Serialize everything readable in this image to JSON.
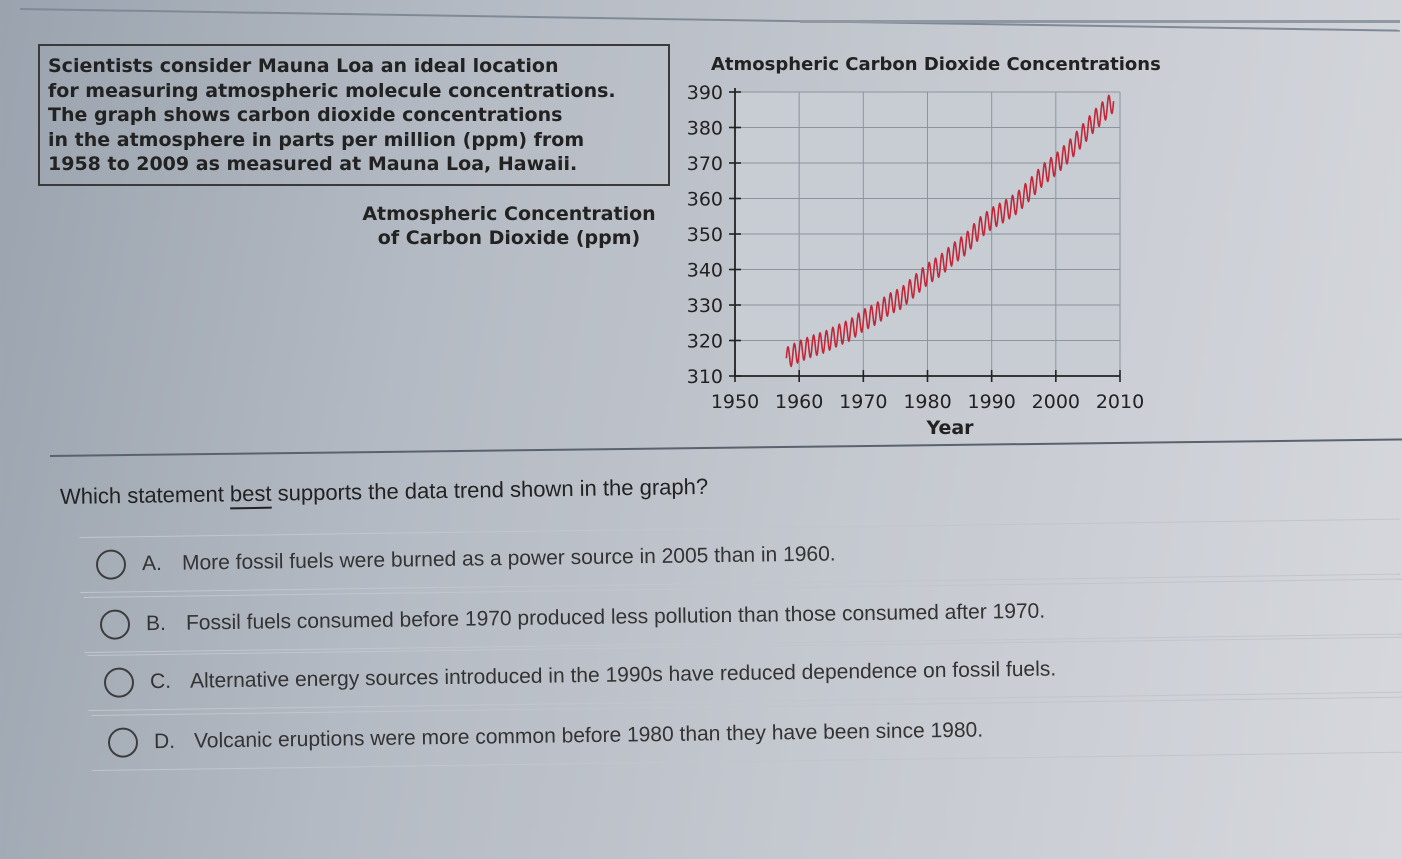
{
  "stem": {
    "lines": [
      "Scientists consider Mauna Loa an ideal location",
      "for measuring atmospheric molecule concentrations.",
      "The graph shows carbon dioxide concentrations",
      "in the atmosphere in parts per million (ppm) from",
      "1958 to 2009 as measured at Mauna Loa, Hawaii."
    ]
  },
  "chart_data": {
    "type": "line",
    "title": "Atmospheric Carbon Dioxide Concentrations",
    "ylabel_lines": [
      "Atmospheric Concentration",
      "of Carbon Dioxide (ppm)"
    ],
    "xlabel": "Year",
    "xlim": [
      1950,
      2010
    ],
    "ylim": [
      310,
      390
    ],
    "xticks": [
      "1950",
      "1960",
      "1970",
      "1980",
      "1990",
      "2000",
      "2010"
    ],
    "yticks": [
      "390",
      "380",
      "370",
      "360",
      "350",
      "340",
      "330",
      "320",
      "310"
    ],
    "grid": true,
    "series": [
      {
        "color": "#c0283a",
        "x": [
          1958,
          1960,
          1962,
          1964,
          1966,
          1968,
          1970,
          1972,
          1974,
          1976,
          1978,
          1980,
          1982,
          1984,
          1986,
          1988,
          1990,
          1992,
          1994,
          1996,
          1998,
          2000,
          2002,
          2004,
          2006,
          2008,
          2009
        ],
        "y": [
          315.0,
          316.9,
          318.4,
          319.6,
          321.4,
          323.0,
          325.7,
          327.5,
          330.2,
          332.0,
          335.4,
          338.7,
          341.1,
          344.4,
          347.2,
          351.5,
          354.4,
          356.4,
          358.8,
          362.6,
          366.7,
          369.6,
          373.2,
          377.5,
          381.9,
          385.6,
          387.4
        ],
        "seasonal_amplitude": 3
      }
    ]
  },
  "question": {
    "before": "Which statement ",
    "emphasis": "best",
    "after": " supports the data trend shown in the graph?"
  },
  "options": [
    {
      "letter": "A.",
      "text": "More fossil fuels were burned as a power source in 2005 than in 1960."
    },
    {
      "letter": "B.",
      "text": "Fossil fuels consumed before 1970 produced less pollution than those consumed after 1970."
    },
    {
      "letter": "C.",
      "text": "Alternative energy sources introduced in the 1990s have reduced dependence on fossil fuels."
    },
    {
      "letter": "D.",
      "text": "Volcanic eruptions were more common before 1980 than they have been since 1980."
    }
  ]
}
